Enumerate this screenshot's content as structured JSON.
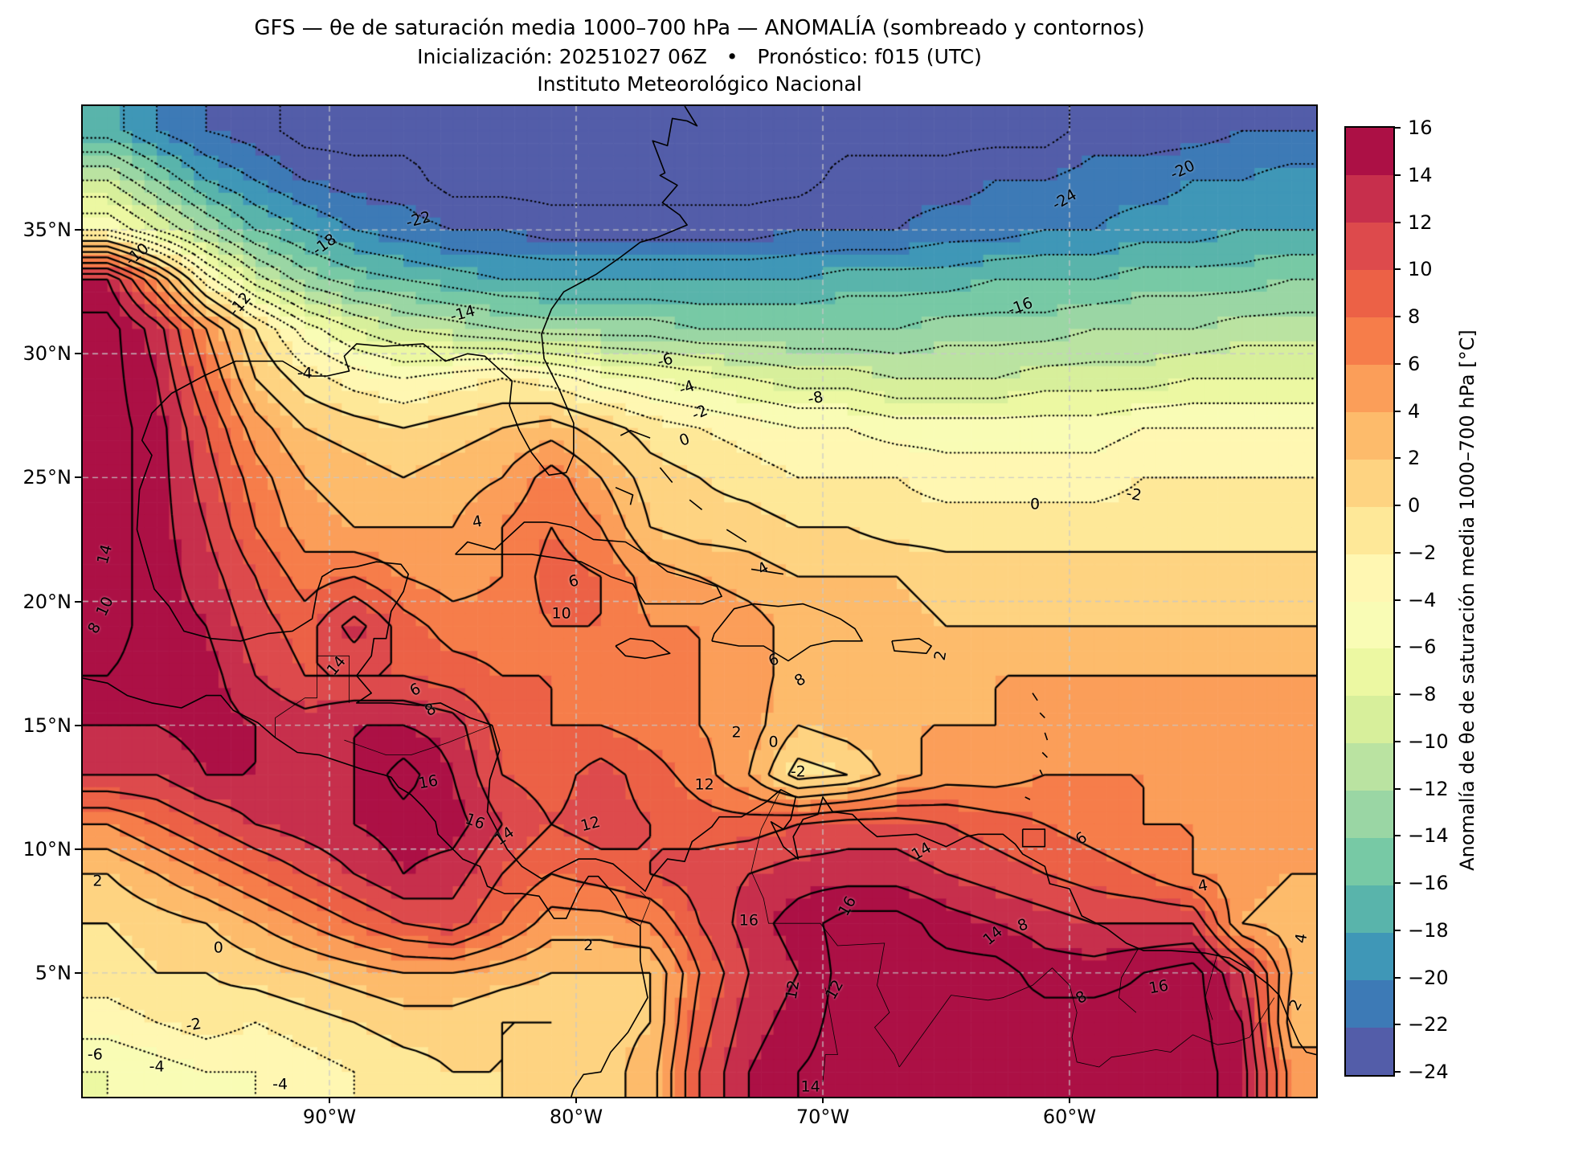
{
  "title": {
    "line1": "GFS — θe de saturación media 1000–700 hPa — ANOMALÍA (sombreado y contornos)",
    "line2": "Inicialización: 20251027 06Z   •   Pronóstico: f015 (UTC)",
    "line3": "Instituto Meteorológico Nacional"
  },
  "axes": {
    "x_ticks": [
      {
        "label": "90°W",
        "lon": -90
      },
      {
        "label": "80°W",
        "lon": -80
      },
      {
        "label": "70°W",
        "lon": -70
      },
      {
        "label": "60°W",
        "lon": -60
      }
    ],
    "y_ticks": [
      {
        "label": "35°N",
        "lat": 35
      },
      {
        "label": "30°N",
        "lat": 30
      },
      {
        "label": "25°N",
        "lat": 25
      },
      {
        "label": "20°N",
        "lat": 20
      },
      {
        "label": "15°N",
        "lat": 15
      },
      {
        "label": "10°N",
        "lat": 10
      },
      {
        "label": "5°N",
        "lat": 5
      }
    ]
  },
  "colorbar": {
    "label": "Anomalía de θe de saturación media 1000–700 hPa [°C]",
    "tick_labels": [
      "16",
      "14",
      "12",
      "10",
      "8",
      "6",
      "4",
      "2",
      "0",
      "−2",
      "−4",
      "−6",
      "−8",
      "−10",
      "−12",
      "−14",
      "−16",
      "−18",
      "−20",
      "−22",
      "−24"
    ],
    "tick_values": [
      16,
      14,
      12,
      10,
      8,
      6,
      4,
      2,
      0,
      -2,
      -4,
      -6,
      -8,
      -10,
      -12,
      -14,
      -16,
      -18,
      -20,
      -22,
      -24
    ],
    "band_colors": [
      "#ac1045",
      "#c72f4c",
      "#dd4a4c",
      "#ec6146",
      "#f67d4a",
      "#fb9e59",
      "#fdbb6b",
      "#fed381",
      "#fee898",
      "#fff7b2",
      "#f9fcb5",
      "#ecf8a2",
      "#d7ef9b",
      "#bae3a1",
      "#9ad6a4",
      "#77c9a5",
      "#59b4ab",
      "#3f97b7",
      "#3d7ab6",
      "#535da9"
    ]
  },
  "chart_data": {
    "type": "heatmap",
    "subtype": "filled-contour-map",
    "title": "GFS θe saturation anomaly 1000–700 hPa",
    "units": "°C",
    "extent": {
      "lon_min": -100,
      "lon_max": -50,
      "lat_min": 0,
      "lat_max": 40
    },
    "grid_on": true,
    "contour_levels": {
      "min": -24,
      "max": 16,
      "step": 2,
      "negative_style": "dotted",
      "zero_positive_style": "solid"
    },
    "grid": {
      "lon_start": -99,
      "lon_step": 2,
      "lat_start": 39,
      "lat_step": -2,
      "ncols": 25,
      "nrows": 20,
      "values": [
        [
          -17,
          -20,
          -22,
          -23,
          -25,
          -25,
          -25,
          -25,
          -25,
          -25,
          -25,
          -25,
          -25,
          -25,
          -25,
          -25,
          -25,
          -25,
          -25,
          -25,
          -23,
          -23,
          -23,
          -22,
          -22
        ],
        [
          -10,
          -14,
          -18,
          -20,
          -22,
          -23,
          -23,
          -25,
          -25,
          -25,
          -25,
          -25,
          -25,
          -25,
          -25,
          -23,
          -23,
          -23,
          -22,
          -22,
          -21,
          -21,
          -20,
          -20,
          -19
        ],
        [
          -4,
          -8,
          -12,
          -16,
          -18,
          -20,
          -21,
          -22,
          -22,
          -23,
          -23,
          -23,
          -23,
          -23,
          -22,
          -22,
          -22,
          -21,
          -21,
          -20,
          -20,
          -19,
          -19,
          -18,
          -18
        ],
        [
          14,
          6,
          -3,
          -9,
          -13,
          -15,
          -16,
          -17,
          -18,
          -18,
          -18,
          -18,
          -18,
          -18,
          -18,
          -17,
          -17,
          -17,
          -16,
          -16,
          -16,
          -15,
          -15,
          -15,
          -14
        ],
        [
          17,
          13,
          6,
          0,
          -5,
          -8,
          -10,
          -11,
          -12,
          -13,
          -13,
          -13,
          -14,
          -14,
          -14,
          -14,
          -14,
          -13,
          -13,
          -13,
          -12,
          -12,
          -12,
          -11,
          -11
        ],
        [
          17,
          14,
          8,
          2,
          -1,
          -3,
          -4,
          -3,
          -2,
          -3,
          -5,
          -6,
          -7,
          -8,
          -9,
          -9,
          -10,
          -10,
          -10,
          -9,
          -9,
          -9,
          -8,
          -8,
          -8
        ],
        [
          17,
          15,
          10,
          5,
          2,
          1,
          0,
          1,
          2,
          3,
          1,
          -1,
          -2,
          -3,
          -4,
          -4,
          -5,
          -5,
          -5,
          -5,
          -5,
          -4,
          -4,
          -4,
          -4
        ],
        [
          17,
          15,
          11,
          7,
          4,
          3,
          2,
          3,
          4,
          7,
          4,
          1,
          0,
          -1,
          -2,
          -2,
          -2,
          -3,
          -3,
          -3,
          -3,
          -2,
          -2,
          -2,
          -2
        ],
        [
          17,
          15,
          12,
          8,
          5,
          4,
          4,
          4,
          6,
          8,
          6,
          2,
          1,
          1,
          0,
          0,
          -1,
          -1,
          -1,
          -1,
          -1,
          -1,
          -1,
          -1,
          -1
        ],
        [
          17,
          15,
          13,
          10,
          7,
          8,
          6,
          5,
          6,
          9,
          8,
          5,
          4,
          3,
          2,
          2,
          2,
          1,
          1,
          1,
          1,
          1,
          1,
          1,
          1
        ],
        [
          17,
          15,
          14,
          11,
          9,
          13,
          9,
          7,
          7,
          8,
          8,
          6,
          6,
          5,
          3,
          3,
          3,
          2,
          2,
          2,
          2,
          2,
          2,
          2,
          2
        ],
        [
          16,
          15,
          15,
          12,
          10,
          10,
          10,
          9,
          8,
          8,
          8,
          7,
          6,
          5,
          3,
          4,
          4,
          4,
          4,
          4,
          4,
          4,
          4,
          4,
          4
        ],
        [
          14,
          14,
          15,
          14,
          13,
          14,
          14,
          13,
          9,
          8,
          8,
          7,
          6,
          5,
          2,
          3,
          4,
          4,
          4,
          5,
          5,
          5,
          5,
          5,
          5
        ],
        [
          12,
          12,
          14,
          14,
          13,
          14,
          17,
          14,
          10,
          9,
          11,
          9,
          7,
          4,
          -1,
          0,
          3,
          5,
          5,
          6,
          6,
          6,
          6,
          6,
          6
        ],
        [
          6,
          8,
          10,
          12,
          13,
          14,
          15,
          15,
          12,
          10,
          11,
          10,
          9,
          9,
          10,
          11,
          11,
          10,
          9,
          8,
          7,
          6,
          6,
          5,
          5
        ],
        [
          2,
          4,
          6,
          8,
          10,
          12,
          14,
          13,
          10,
          8,
          9,
          10,
          11,
          12,
          13,
          13,
          13,
          12,
          11,
          10,
          9,
          8,
          6,
          5,
          4
        ],
        [
          0,
          1,
          2,
          4,
          6,
          8,
          10,
          11,
          8,
          5,
          5,
          6,
          10,
          13,
          15,
          17,
          17,
          15,
          14,
          13,
          12,
          12,
          12,
          4,
          3
        ],
        [
          -1,
          0,
          0,
          1,
          2,
          3,
          4,
          4,
          3,
          2,
          2,
          2,
          8,
          12,
          14,
          17,
          17,
          17,
          17,
          15,
          15,
          16,
          17,
          12,
          4
        ],
        [
          -3,
          -2,
          -1,
          -2,
          -1,
          0,
          1,
          1,
          0,
          0,
          1,
          2,
          9,
          13,
          15,
          17,
          17,
          17,
          17,
          17,
          17,
          17,
          17,
          14,
          3
        ],
        [
          -6,
          -5,
          -4,
          -4,
          -3,
          -2,
          -1,
          0,
          0,
          1,
          1,
          3,
          10,
          14,
          16,
          17,
          17,
          17,
          17,
          17,
          17,
          17,
          17,
          15,
          5
        ]
      ]
    },
    "contour_labels": [
      {
        "text": "-10",
        "lon": -97.8,
        "lat": 34.0,
        "rot": -40
      },
      {
        "text": "-18",
        "lon": -90.2,
        "lat": 34.4,
        "rot": -35
      },
      {
        "text": "-12",
        "lon": -93.6,
        "lat": 32.0,
        "rot": -50
      },
      {
        "text": "-14",
        "lon": -84.6,
        "lat": 31.6,
        "rot": -15
      },
      {
        "text": "-22",
        "lon": -86.4,
        "lat": 35.4,
        "rot": -15
      },
      {
        "text": "-24",
        "lon": -60.2,
        "lat": 36.2,
        "rot": -30
      },
      {
        "text": "-20",
        "lon": -55.4,
        "lat": 37.4,
        "rot": -25
      },
      {
        "text": "-16",
        "lon": -62.0,
        "lat": 31.9,
        "rot": -20
      },
      {
        "text": "-8",
        "lon": -70.3,
        "lat": 28.2,
        "rot": -10
      },
      {
        "text": "-6",
        "lon": -76.4,
        "lat": 29.7,
        "rot": -15
      },
      {
        "text": "-4",
        "lon": -91.0,
        "lat": 29.2,
        "rot": 0
      },
      {
        "text": "-4",
        "lon": -75.5,
        "lat": 28.6,
        "rot": -20
      },
      {
        "text": "-2",
        "lon": -75.0,
        "lat": 27.6,
        "rot": -25
      },
      {
        "text": "-2",
        "lon": -57.4,
        "lat": 24.3,
        "rot": 10
      },
      {
        "text": "0",
        "lon": -75.6,
        "lat": 26.5,
        "rot": -20
      },
      {
        "text": "0",
        "lon": -61.4,
        "lat": 23.9,
        "rot": 0
      },
      {
        "text": "0",
        "lon": -72.0,
        "lat": 14.3,
        "rot": 0
      },
      {
        "text": "-2",
        "lon": -71.0,
        "lat": 13.1,
        "rot": 0
      },
      {
        "text": "2",
        "lon": -73.5,
        "lat": 14.7,
        "rot": 0
      },
      {
        "text": "2",
        "lon": -65.2,
        "lat": 17.8,
        "rot": -80
      },
      {
        "text": "4",
        "lon": -72.4,
        "lat": 21.3,
        "rot": -30
      },
      {
        "text": "4",
        "lon": -84.0,
        "lat": 23.2,
        "rot": -10
      },
      {
        "text": "6",
        "lon": -80.1,
        "lat": 20.8,
        "rot": -15
      },
      {
        "text": "6",
        "lon": -72.0,
        "lat": 17.6,
        "rot": -20
      },
      {
        "text": "8",
        "lon": -70.9,
        "lat": 16.8,
        "rot": -30
      },
      {
        "text": "10",
        "lon": -80.6,
        "lat": 19.5,
        "rot": 0
      },
      {
        "text": "14",
        "lon": -99.1,
        "lat": 21.9,
        "rot": -75
      },
      {
        "text": "10",
        "lon": -99.1,
        "lat": 19.8,
        "rot": -65
      },
      {
        "text": "8",
        "lon": -99.5,
        "lat": 18.9,
        "rot": -60
      },
      {
        "text": "2",
        "lon": -99.4,
        "lat": 8.7,
        "rot": 0
      },
      {
        "text": "0",
        "lon": -94.5,
        "lat": 6.0,
        "rot": 0
      },
      {
        "text": "-2",
        "lon": -95.5,
        "lat": 2.9,
        "rot": -10
      },
      {
        "text": "-4",
        "lon": -97.0,
        "lat": 1.2,
        "rot": 0
      },
      {
        "text": "-4",
        "lon": -92.0,
        "lat": 0.5,
        "rot": 0
      },
      {
        "text": "-6",
        "lon": -99.5,
        "lat": 1.7,
        "rot": 0
      },
      {
        "text": "6",
        "lon": -86.5,
        "lat": 16.4,
        "rot": -25
      },
      {
        "text": "8",
        "lon": -85.9,
        "lat": 15.6,
        "rot": -30
      },
      {
        "text": "14",
        "lon": -89.7,
        "lat": 17.4,
        "rot": -50
      },
      {
        "text": "16",
        "lon": -86.0,
        "lat": 12.7,
        "rot": -10
      },
      {
        "text": "16",
        "lon": -84.1,
        "lat": 11.1,
        "rot": 20
      },
      {
        "text": "14",
        "lon": -82.9,
        "lat": 10.5,
        "rot": -35
      },
      {
        "text": "12",
        "lon": -79.4,
        "lat": 11.0,
        "rot": -15
      },
      {
        "text": "2",
        "lon": -79.5,
        "lat": 6.1,
        "rot": 0
      },
      {
        "text": "16",
        "lon": -73.0,
        "lat": 7.1,
        "rot": 0
      },
      {
        "text": "16",
        "lon": -69.0,
        "lat": 7.7,
        "rot": -60
      },
      {
        "text": "14",
        "lon": -66.0,
        "lat": 9.9,
        "rot": -30
      },
      {
        "text": "14",
        "lon": -63.1,
        "lat": 6.5,
        "rot": -40
      },
      {
        "text": "12",
        "lon": -71.2,
        "lat": 4.3,
        "rot": -80
      },
      {
        "text": "12",
        "lon": -69.5,
        "lat": 4.3,
        "rot": -60
      },
      {
        "text": "14",
        "lon": -70.5,
        "lat": 0.4,
        "rot": 0
      },
      {
        "text": "16",
        "lon": -56.4,
        "lat": 4.4,
        "rot": -10
      },
      {
        "text": "8",
        "lon": -61.9,
        "lat": 6.9,
        "rot": -20
      },
      {
        "text": "8",
        "lon": -59.5,
        "lat": 4.0,
        "rot": -30
      },
      {
        "text": "6",
        "lon": -59.5,
        "lat": 10.4,
        "rot": -35
      },
      {
        "text": "4",
        "lon": -54.6,
        "lat": 8.5,
        "rot": -10
      },
      {
        "text": "4",
        "lon": -50.6,
        "lat": 6.4,
        "rot": -80
      },
      {
        "text": "2",
        "lon": -50.8,
        "lat": 3.7,
        "rot": -60
      },
      {
        "text": "12",
        "lon": -74.8,
        "lat": 12.6,
        "rot": 0
      }
    ]
  }
}
